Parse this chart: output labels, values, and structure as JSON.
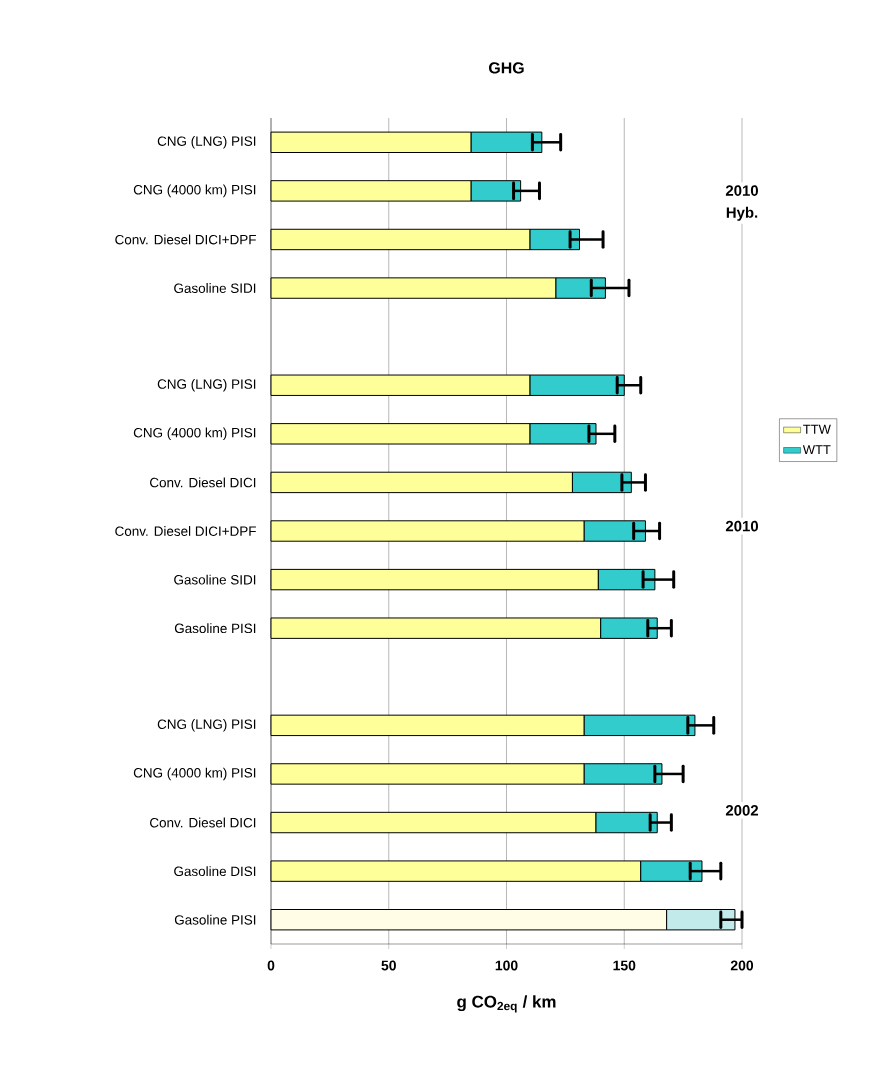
{
  "chart_data": {
    "type": "bar",
    "orientation": "horizontal",
    "stacked": true,
    "title": "GHG",
    "xlabel": "g CO$_{2eq}$ /  km",
    "categories": [
      "CNG (LNG) PISI",
      "CNG (4000 km) PISI",
      "Conv. Diesel DICI+DPF",
      "Gasoline SIDI",
      null,
      "CNG (LNG) PISI",
      "CNG (4000 km) PISI",
      "Conv. Diesel DICI",
      "Conv. Diesel DICI+DPF",
      "Gasoline SIDI",
      "Gasoline PISI",
      null,
      "CNG (LNG) PISI",
      "CNG (4000 km) PISI",
      "Conv. Diesel DICI",
      "Gasoline DISI",
      "Gasoline PISI"
    ],
    "series": [
      {
        "name": "TTW",
        "color": "#ffff99",
        "colors": [
          "#ffff99",
          "#ffff99",
          "#ffff99",
          "#ffff99",
          null,
          "#ffff99",
          "#ffff99",
          "#ffff99",
          "#ffff99",
          "#ffff99",
          "#ffff99",
          null,
          "#ffff99",
          "#ffff99",
          "#ffff99",
          "#ffff99",
          "#fffde6"
        ],
        "values": [
          85,
          85,
          110,
          121,
          null,
          110,
          110,
          128,
          133,
          139,
          140,
          null,
          133,
          133,
          138,
          157,
          168
        ]
      },
      {
        "name": "WTT",
        "color": "#33cccc",
        "colors": [
          "#33cccc",
          "#33cccc",
          "#33cccc",
          "#33cccc",
          null,
          "#33cccc",
          "#33cccc",
          "#33cccc",
          "#33cccc",
          "#33cccc",
          "#33cccc",
          null,
          "#33cccc",
          "#33cccc",
          "#33cccc",
          "#33cccc",
          "#c2eaea"
        ],
        "values": [
          30,
          21,
          21,
          21,
          null,
          40,
          28,
          25,
          26,
          24,
          24,
          null,
          47,
          33,
          26,
          26,
          29
        ],
        "errors": [
          [
            111,
            123
          ],
          [
            103,
            114
          ],
          [
            127,
            141
          ],
          [
            136,
            152
          ],
          null,
          [
            147,
            157
          ],
          [
            135,
            146
          ],
          [
            149,
            159
          ],
          [
            154,
            165
          ],
          [
            158,
            171
          ],
          [
            160,
            170
          ],
          null,
          [
            177,
            188
          ],
          [
            163,
            175
          ],
          [
            161,
            170
          ],
          [
            178,
            191
          ],
          [
            191,
            200
          ]
        ]
      }
    ],
    "xlim": [
      0,
      200
    ],
    "xticks": [
      0,
      50,
      100,
      150,
      200
    ],
    "grid": "x",
    "legend": "right",
    "annotations": [
      "2010 Hyb.",
      "2010",
      "2002"
    ]
  }
}
